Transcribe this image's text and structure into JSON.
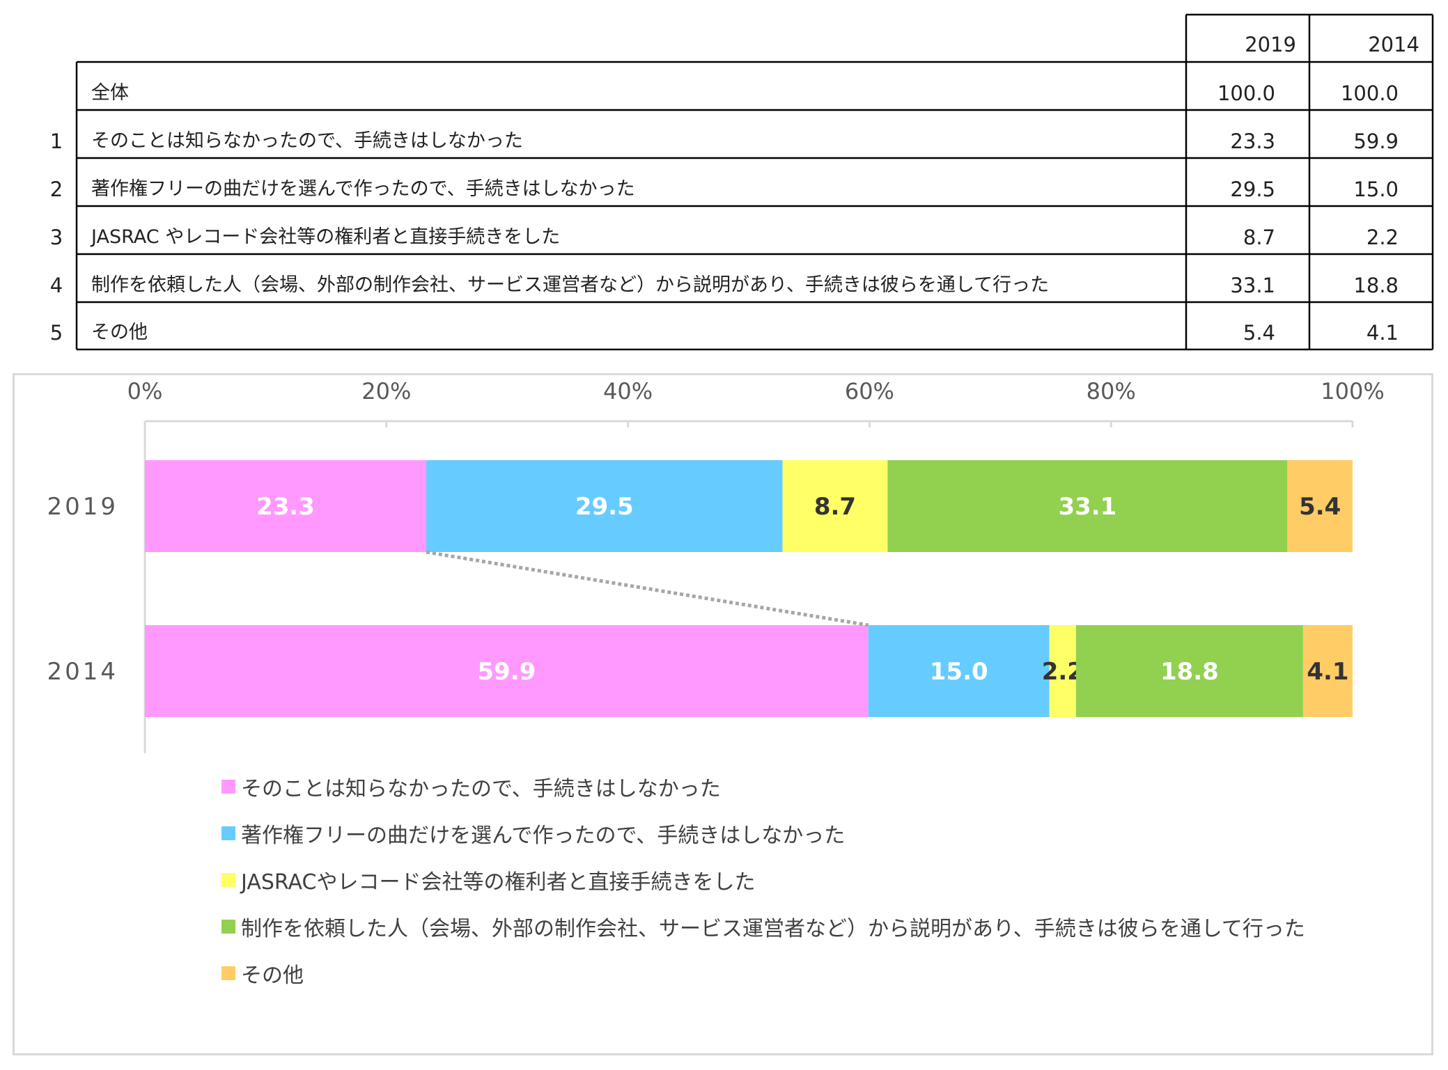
{
  "table": {
    "headers": [
      "2019",
      "2014"
    ],
    "total": {
      "label": "全体",
      "values": [
        "100.0",
        "100.0"
      ]
    },
    "rows": [
      {
        "num": "1",
        "label": "そのことは知らなかったので、手続きはしなかった",
        "values": [
          "23.3",
          "59.9"
        ]
      },
      {
        "num": "2",
        "label": "著作権フリーの曲だけを選んで作ったので、手続きはしなかった",
        "values": [
          "29.5",
          "15.0"
        ]
      },
      {
        "num": "3",
        "label": "JASRAC やレコード会社等の権利者と直接手続きをした",
        "values": [
          "8.7",
          "2.2"
        ]
      },
      {
        "num": "4",
        "label": "制作を依頼した人（会場、外部の制作会社、サービス運営者など）から説明があり、手続きは彼らを通して行った",
        "values": [
          "33.1",
          "18.8"
        ]
      },
      {
        "num": "5",
        "label": "その他",
        "values": [
          "5.4",
          "4.1"
        ]
      }
    ]
  },
  "chart_data": {
    "type": "bar",
    "orientation": "horizontal",
    "stacked": "percent",
    "categories": [
      "2019",
      "2014"
    ],
    "xlim": [
      0,
      100
    ],
    "x_ticks": [
      "0%",
      "20%",
      "40%",
      "60%",
      "80%",
      "100%"
    ],
    "grid": false,
    "legend_position": "bottom",
    "series": [
      {
        "name": "そのことは知らなかったので、手続きはしなかった",
        "values": [
          23.3,
          59.9
        ],
        "color": "#ff99ff",
        "label_color": "#ffffff"
      },
      {
        "name": "著作権フリーの曲だけを選んで作ったので、手続きはしなかった",
        "values": [
          29.5,
          15.0
        ],
        "color": "#66ccff",
        "label_color": "#ffffff"
      },
      {
        "name": "JASRACやレコード会社等の権利者と直接手続きをした",
        "values": [
          8.7,
          2.2
        ],
        "color": "#ffff66",
        "label_color": "#333333"
      },
      {
        "name": "制作を依頼した人（会場、外部の制作会社、サービス運営者など）から説明があり、手続きは彼らを通して行った",
        "values": [
          33.1,
          18.8
        ],
        "color": "#92d050",
        "label_color": "#ffffff"
      },
      {
        "name": "その他",
        "values": [
          5.4,
          4.1
        ],
        "color": "#ffcc66",
        "label_color": "#333333"
      }
    ],
    "annotation": "dotted line connecting end of first segment of 2019 to end of first segment of 2014"
  }
}
